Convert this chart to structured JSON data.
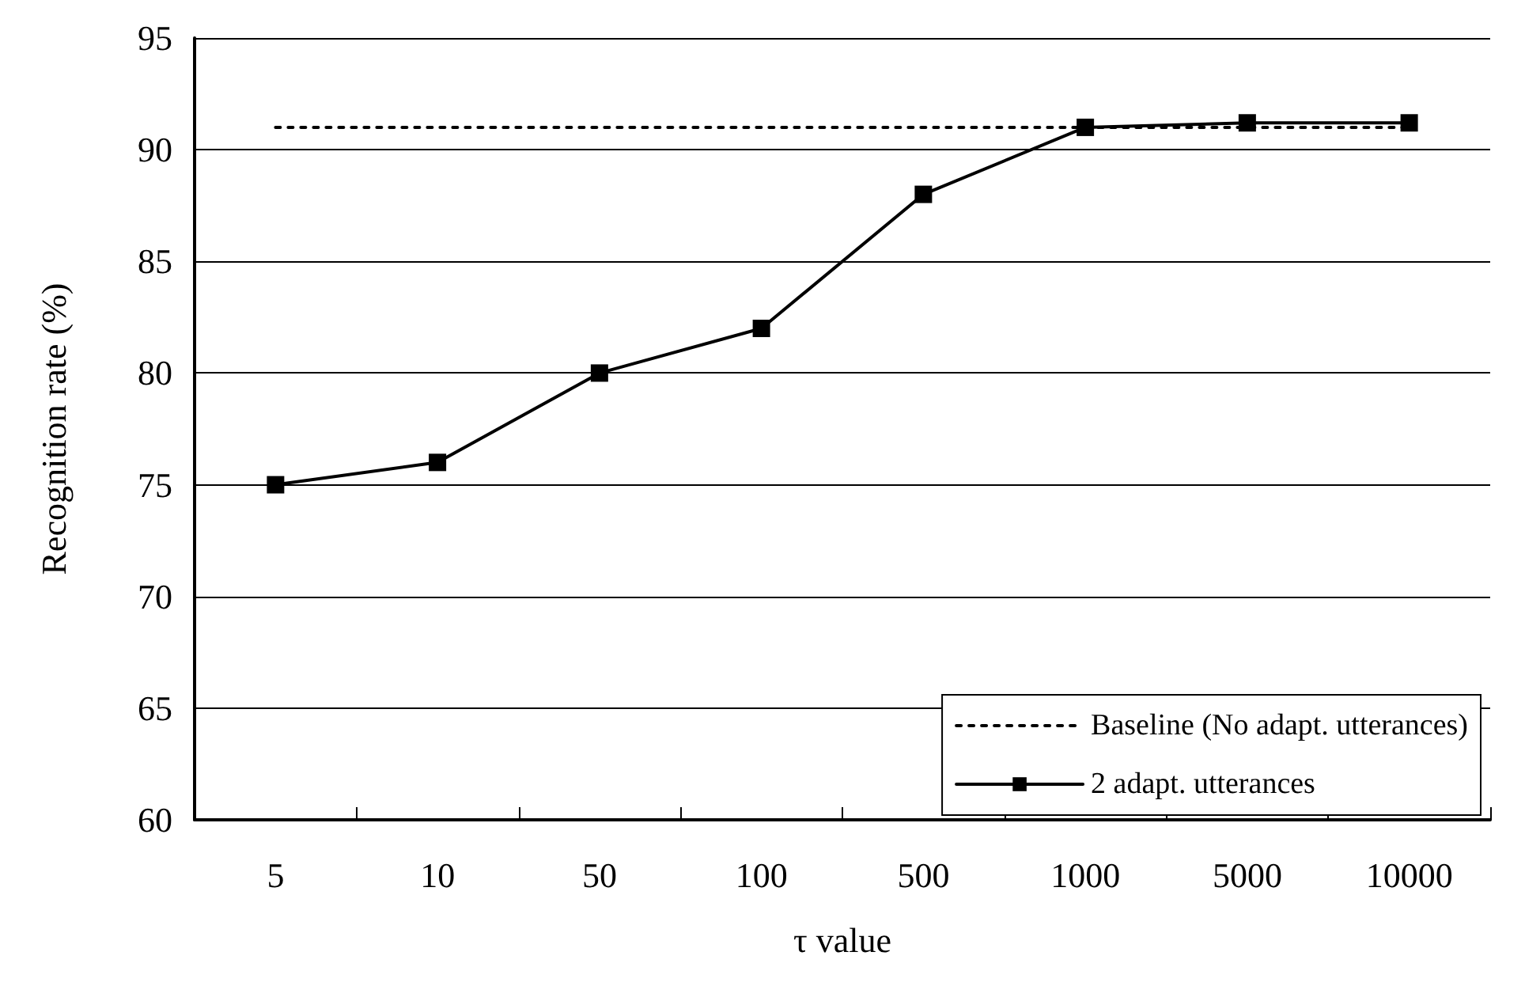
{
  "chart_data": {
    "type": "line",
    "xlabel": "τ value",
    "ylabel": "Recognition rate (%)",
    "categories": [
      "5",
      "10",
      "50",
      "100",
      "500",
      "1000",
      "5000",
      "10000"
    ],
    "series": [
      {
        "name": "Baseline (No adapt. utterances)",
        "color": "#000000",
        "values": [
          91,
          91,
          91,
          91,
          91,
          91,
          91,
          91
        ],
        "line_style": "dotted",
        "marker": "none"
      },
      {
        "name": "2 adapt. utterances",
        "color": "#000000",
        "values": [
          75,
          76,
          80,
          82,
          88,
          91,
          91.2,
          91.2
        ],
        "line_style": "solid",
        "marker": "square"
      }
    ],
    "ylim": [
      60,
      95
    ],
    "yticks": [
      60,
      65,
      70,
      75,
      80,
      85,
      90,
      95
    ],
    "grid": "y",
    "legend": "bottom right"
  }
}
